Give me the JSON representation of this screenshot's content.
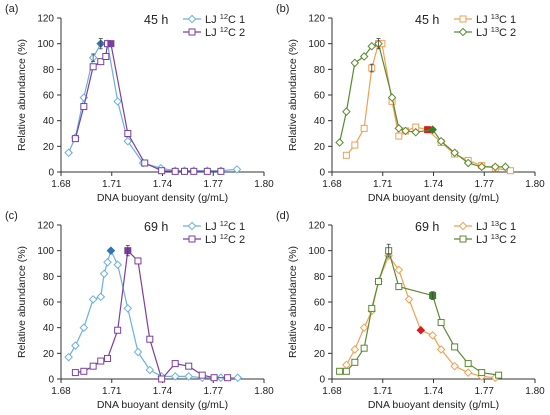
{
  "figure": {
    "x_axis": {
      "label": "DNA buoyant density (g/mL)",
      "ticks": [
        "1.68",
        "1.71",
        "1.74",
        "1.77",
        "1.80"
      ],
      "range": [
        1.68,
        1.8
      ]
    },
    "y_axis": {
      "label": "Relative abundance (%)",
      "ticks": [
        "0",
        "20",
        "40",
        "60",
        "80",
        "100",
        "120"
      ],
      "range": [
        0,
        120
      ]
    },
    "panels": [
      {
        "panel_label": "(a)",
        "time_label": "45 h",
        "series": [
          {
            "legend_prefix": "LJ ",
            "legend_sup": "12",
            "legend_suffix": "C 1",
            "color": "#6ab0e0",
            "marker": "diamond",
            "peak_color": "#2e75b6",
            "peak_index": 4,
            "x": [
              1.6845,
              1.6885,
              1.6935,
              1.699,
              1.7035,
              1.7075,
              1.7135,
              1.7195,
              1.7285,
              1.739,
              1.7475,
              1.753,
              1.7585,
              1.7665,
              1.7745,
              1.784
            ],
            "y": [
              15,
              27,
              58,
              89,
              100,
              100,
              55,
              24,
              7,
              3,
              1,
              1,
              1,
              1,
              1,
              2
            ]
          },
          {
            "legend_prefix": "LJ ",
            "legend_sup": "12",
            "legend_suffix": "C 2",
            "color": "#7b3fa0",
            "marker": "square",
            "peak_color": "#7b3fa0",
            "peak_index": 6,
            "x": [
              1.6885,
              1.6935,
              1.699,
              1.7035,
              1.7065,
              1.7075,
              1.7095,
              1.7195,
              1.7295,
              1.7395,
              1.7475,
              1.753,
              1.7585,
              1.7665,
              1.7745
            ],
            "y": [
              26,
              51,
              82,
              86,
              90,
              100,
              100,
              30,
              7,
              1,
              0.5,
              0.5,
              0.5,
              0.5,
              0.5
            ]
          }
        ],
        "error_bars": [
          {
            "x": 1.699,
            "y": 89,
            "err": 3
          },
          {
            "x": 1.7035,
            "y": 100,
            "err": 4
          }
        ]
      },
      {
        "panel_label": "(b)",
        "time_label": "45 h",
        "series": [
          {
            "legend_prefix": "LJ ",
            "legend_sup": "13",
            "legend_suffix": "C 1",
            "color": "#f0a050",
            "marker": "square",
            "peak_color": "#d22020",
            "peak_index": 10,
            "x": [
              1.6885,
              1.6935,
              1.699,
              1.7035,
              1.7075,
              1.7095,
              1.7155,
              1.7195,
              1.7235,
              1.7295,
              1.7365,
              1.7445,
              1.7525,
              1.7605,
              1.7685,
              1.7765,
              1.7855
            ],
            "y": [
              13,
              21,
              34,
              81,
              100,
              100,
              55,
              28,
              32,
              35,
              33,
              23,
              14,
              9,
              5,
              3,
              1
            ]
          },
          {
            "legend_prefix": "LJ ",
            "legend_sup": "13",
            "legend_suffix": "C 2",
            "color": "#5a8a30",
            "marker": "diamond",
            "peak_color": "#3a7d2a",
            "peak_index": 10,
            "x": [
              1.6845,
              1.6885,
              1.6935,
              1.699,
              1.7035,
              1.7075,
              1.7155,
              1.7195,
              1.7235,
              1.7295,
              1.7395,
              1.7445,
              1.7525,
              1.7605,
              1.7685,
              1.7765,
              1.7825
            ],
            "y": [
              23,
              47,
              85,
              90,
              98,
              100,
              58,
              34,
              32,
              31,
              33,
              24,
              15,
              7,
              4,
              4,
              4
            ]
          }
        ],
        "error_bars": [
          {
            "x": 1.7035,
            "y": 81,
            "err": 3
          },
          {
            "x": 1.7075,
            "y": 100,
            "err": 4
          }
        ]
      },
      {
        "panel_label": "(c)",
        "time_label": "69 h",
        "series": [
          {
            "legend_prefix": "LJ ",
            "legend_sup": "12",
            "legend_suffix": "C 1",
            "color": "#6ab0e0",
            "marker": "diamond",
            "peak_color": "#2e75b6",
            "peak_index": 7,
            "x": [
              1.6845,
              1.6885,
              1.6935,
              1.699,
              1.7035,
              1.7055,
              1.7075,
              1.7095,
              1.7135,
              1.7195,
              1.7255,
              1.7325,
              1.7395,
              1.7475,
              1.7555,
              1.7635,
              1.7745,
              1.7845
            ],
            "y": [
              17,
              26,
              40,
              62,
              64,
              82,
              91,
              100,
              89,
              55,
              21,
              7,
              2,
              2,
              2,
              1,
              1,
              1
            ],
            "peak_y_override": null
          },
          {
            "legend_prefix": "LJ ",
            "legend_sup": "12",
            "legend_suffix": "C 2",
            "color": "#7b3fa0",
            "marker": "square",
            "peak_color": "#7b3fa0",
            "peak_index": 6,
            "x": [
              1.6885,
              1.6935,
              1.699,
              1.7035,
              1.7075,
              1.7135,
              1.7195,
              1.7255,
              1.7325,
              1.7395,
              1.7475,
              1.7555,
              1.7635,
              1.7705,
              1.7785
            ],
            "y": [
              5,
              6,
              10,
              14,
              16,
              38,
              100,
              92,
              31,
              0,
              12,
              10,
              3,
              1,
              1
            ]
          }
        ],
        "error_bars": [
          {
            "x": 1.7195,
            "y": 100,
            "err": 4
          }
        ]
      },
      {
        "panel_label": "(d)",
        "time_label": "69 h",
        "series": [
          {
            "legend_prefix": "LJ ",
            "legend_sup": "13",
            "legend_suffix": "C 1",
            "color": "#f0a050",
            "marker": "diamond",
            "peak_color": "#d22020",
            "peak_index": 8,
            "x": [
              1.6885,
              1.6935,
              1.699,
              1.7035,
              1.7075,
              1.7135,
              1.7195,
              1.7255,
              1.7325,
              1.7395,
              1.7445,
              1.7525,
              1.7605,
              1.7685,
              1.7765
            ],
            "y": [
              11,
              23,
              40,
              53,
              76,
              96,
              85,
              62,
              38,
              34,
              23,
              10,
              5,
              2,
              1
            ]
          },
          {
            "legend_prefix": "LJ ",
            "legend_sup": "13",
            "legend_suffix": "C 2",
            "color": "#5a8a30",
            "marker": "square",
            "peak_color": "#3a7d2a",
            "peak_index": 8,
            "x": [
              1.6845,
              1.6885,
              1.6935,
              1.699,
              1.7035,
              1.7075,
              1.7135,
              1.7195,
              1.7395,
              1.7445,
              1.7525,
              1.7605,
              1.7685,
              1.7785
            ],
            "y": [
              6,
              6,
              13,
              24,
              55,
              76,
              100,
              72,
              65,
              44,
              25,
              12,
              5,
              3
            ]
          }
        ],
        "error_bars": [
          {
            "x": 1.7135,
            "y": 100,
            "err": 5
          },
          {
            "x": 1.7395,
            "y": 65,
            "err": 3
          }
        ]
      }
    ]
  },
  "chart_data": [
    {
      "type": "line",
      "title": "45 h",
      "panel": "(a)",
      "xlabel": "DNA buoyant density (g/mL)",
      "ylabel": "Relative abundance (%)",
      "xlim": [
        1.68,
        1.8
      ],
      "ylim": [
        0,
        120
      ],
      "grid": false,
      "legend_position": "top-right",
      "series": [
        {
          "name": "LJ 12C 1",
          "x": [
            1.6845,
            1.6885,
            1.6935,
            1.699,
            1.7035,
            1.7075,
            1.7135,
            1.7195,
            1.7285,
            1.739,
            1.7475,
            1.753,
            1.7585,
            1.7665,
            1.7745,
            1.784
          ],
          "y": [
            15,
            27,
            58,
            89,
            100,
            100,
            55,
            24,
            7,
            3,
            1,
            1,
            1,
            1,
            1,
            2
          ]
        },
        {
          "name": "LJ 12C 2",
          "x": [
            1.6885,
            1.6935,
            1.699,
            1.7035,
            1.7065,
            1.7075,
            1.7095,
            1.7195,
            1.7295,
            1.7395,
            1.7475,
            1.753,
            1.7585,
            1.7665,
            1.7745
          ],
          "y": [
            26,
            51,
            82,
            86,
            90,
            100,
            100,
            30,
            7,
            1,
            0.5,
            0.5,
            0.5,
            0.5,
            0.5
          ]
        }
      ]
    },
    {
      "type": "line",
      "title": "45 h",
      "panel": "(b)",
      "xlabel": "DNA buoyant density (g/mL)",
      "ylabel": "Relative abundance (%)",
      "xlim": [
        1.68,
        1.8
      ],
      "ylim": [
        0,
        120
      ],
      "grid": false,
      "legend_position": "top-right",
      "series": [
        {
          "name": "LJ 13C 1",
          "x": [
            1.6885,
            1.6935,
            1.699,
            1.7035,
            1.7075,
            1.7095,
            1.7155,
            1.7195,
            1.7235,
            1.7295,
            1.7365,
            1.7445,
            1.7525,
            1.7605,
            1.7685,
            1.7765,
            1.7855
          ],
          "y": [
            13,
            21,
            34,
            81,
            100,
            100,
            55,
            28,
            32,
            35,
            33,
            23,
            14,
            9,
            5,
            3,
            1
          ]
        },
        {
          "name": "LJ 13C 2",
          "x": [
            1.6845,
            1.6885,
            1.6935,
            1.699,
            1.7035,
            1.7075,
            1.7155,
            1.7195,
            1.7235,
            1.7295,
            1.7395,
            1.7445,
            1.7525,
            1.7605,
            1.7685,
            1.7765,
            1.7825
          ],
          "y": [
            23,
            47,
            85,
            90,
            98,
            100,
            58,
            34,
            32,
            31,
            33,
            24,
            15,
            7,
            4,
            4,
            4
          ]
        }
      ]
    },
    {
      "type": "line",
      "title": "69 h",
      "panel": "(c)",
      "xlabel": "DNA buoyant density (g/mL)",
      "ylabel": "Relative abundance (%)",
      "xlim": [
        1.68,
        1.8
      ],
      "ylim": [
        0,
        120
      ],
      "grid": false,
      "legend_position": "top-right",
      "series": [
        {
          "name": "LJ 12C 1",
          "x": [
            1.6845,
            1.6885,
            1.6935,
            1.699,
            1.7035,
            1.7055,
            1.7075,
            1.7095,
            1.7135,
            1.7195,
            1.7255,
            1.7325,
            1.7395,
            1.7475,
            1.7555,
            1.7635,
            1.7745,
            1.7845
          ],
          "y": [
            17,
            26,
            40,
            62,
            64,
            82,
            91,
            100,
            89,
            55,
            21,
            7,
            2,
            2,
            2,
            1,
            1,
            1
          ]
        },
        {
          "name": "LJ 12C 2",
          "x": [
            1.6885,
            1.6935,
            1.699,
            1.7035,
            1.7075,
            1.7135,
            1.7195,
            1.7255,
            1.7325,
            1.7395,
            1.7475,
            1.7555,
            1.7635,
            1.7705,
            1.7785
          ],
          "y": [
            5,
            6,
            10,
            14,
            16,
            38,
            100,
            92,
            31,
            0,
            12,
            10,
            3,
            1,
            1
          ]
        }
      ]
    },
    {
      "type": "line",
      "title": "69 h",
      "panel": "(d)",
      "xlabel": "DNA buoyant density (g/mL)",
      "ylabel": "Relative abundance (%)",
      "xlim": [
        1.68,
        1.8
      ],
      "ylim": [
        0,
        120
      ],
      "grid": false,
      "legend_position": "top-right",
      "series": [
        {
          "name": "LJ 13C 1",
          "x": [
            1.6885,
            1.6935,
            1.699,
            1.7035,
            1.7075,
            1.7135,
            1.7195,
            1.7255,
            1.7325,
            1.7395,
            1.7445,
            1.7525,
            1.7605,
            1.7685,
            1.7765
          ],
          "y": [
            11,
            23,
            40,
            53,
            76,
            96,
            85,
            62,
            38,
            34,
            23,
            10,
            5,
            2,
            1
          ]
        },
        {
          "name": "LJ 13C 2",
          "x": [
            1.6845,
            1.6885,
            1.6935,
            1.699,
            1.7035,
            1.7075,
            1.7135,
            1.7195,
            1.7395,
            1.7445,
            1.7525,
            1.7605,
            1.7685,
            1.7785
          ],
          "y": [
            6,
            6,
            13,
            24,
            55,
            76,
            100,
            72,
            65,
            44,
            25,
            12,
            5,
            3
          ]
        }
      ]
    }
  ]
}
